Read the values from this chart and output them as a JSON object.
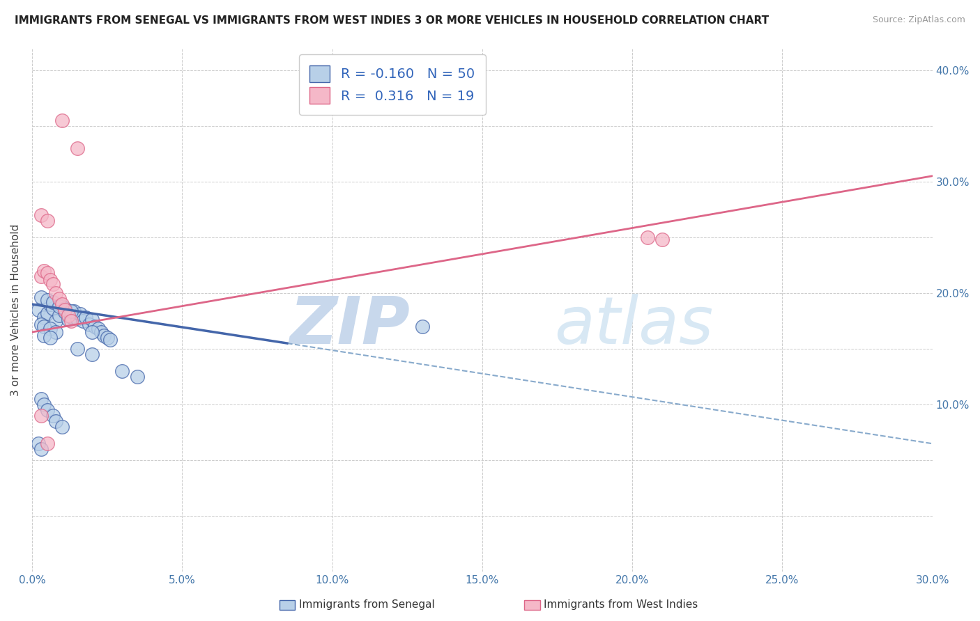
{
  "title": "IMMIGRANTS FROM SENEGAL VS IMMIGRANTS FROM WEST INDIES 3 OR MORE VEHICLES IN HOUSEHOLD CORRELATION CHART",
  "source": "Source: ZipAtlas.com",
  "ylabel": "3 or more Vehicles in Household",
  "legend_blue_R": "-0.160",
  "legend_blue_N": "50",
  "legend_pink_R": "0.316",
  "legend_pink_N": "19",
  "xlim": [
    0.0,
    0.3
  ],
  "ylim": [
    -0.05,
    0.42
  ],
  "xticks": [
    0.0,
    0.05,
    0.1,
    0.15,
    0.2,
    0.25,
    0.3
  ],
  "yticks": [
    0.0,
    0.05,
    0.1,
    0.15,
    0.2,
    0.25,
    0.3,
    0.35,
    0.4
  ],
  "ytick_labels_right": [
    "",
    "",
    "10.0%",
    "",
    "20.0%",
    "",
    "30.0%",
    "",
    "40.0%"
  ],
  "xtick_labels": [
    "0.0%",
    "5.0%",
    "10.0%",
    "15.0%",
    "20.0%",
    "25.0%",
    "30.0%"
  ],
  "color_blue": "#b8d0e8",
  "color_pink": "#f5b8c8",
  "color_blue_line": "#4466aa",
  "color_pink_line": "#dd6688",
  "color_dashed": "#88aacc",
  "background": "#ffffff",
  "watermark_zip": "ZIP",
  "watermark_atlas": "atlas",
  "blue_scatter_x": [
    0.002,
    0.004,
    0.005,
    0.006,
    0.007,
    0.008,
    0.009,
    0.01,
    0.011,
    0.012,
    0.013,
    0.014,
    0.015,
    0.016,
    0.017,
    0.018,
    0.019,
    0.02,
    0.021,
    0.022,
    0.023,
    0.024,
    0.025,
    0.026,
    0.003,
    0.005,
    0.007,
    0.009,
    0.011,
    0.013,
    0.003,
    0.004,
    0.006,
    0.008,
    0.004,
    0.006,
    0.015,
    0.02,
    0.03,
    0.035,
    0.003,
    0.004,
    0.005,
    0.007,
    0.008,
    0.01,
    0.002,
    0.003,
    0.13,
    0.02
  ],
  "blue_scatter_y": [
    0.185,
    0.178,
    0.182,
    0.19,
    0.186,
    0.175,
    0.18,
    0.188,
    0.183,
    0.176,
    0.179,
    0.184,
    0.177,
    0.181,
    0.175,
    0.178,
    0.172,
    0.176,
    0.17,
    0.168,
    0.165,
    0.162,
    0.16,
    0.158,
    0.196,
    0.194,
    0.192,
    0.188,
    0.186,
    0.184,
    0.172,
    0.17,
    0.168,
    0.165,
    0.162,
    0.16,
    0.15,
    0.145,
    0.13,
    0.125,
    0.105,
    0.1,
    0.095,
    0.09,
    0.085,
    0.08,
    0.065,
    0.06,
    0.17,
    0.165
  ],
  "pink_scatter_x": [
    0.003,
    0.004,
    0.005,
    0.006,
    0.007,
    0.008,
    0.009,
    0.01,
    0.011,
    0.012,
    0.013,
    0.003,
    0.005,
    0.01,
    0.015,
    0.003,
    0.005,
    0.205,
    0.21
  ],
  "pink_scatter_y": [
    0.215,
    0.22,
    0.218,
    0.212,
    0.208,
    0.2,
    0.195,
    0.19,
    0.185,
    0.18,
    0.175,
    0.27,
    0.265,
    0.355,
    0.33,
    0.09,
    0.065,
    0.25,
    0.248
  ],
  "blue_line_x": [
    0.0,
    0.085
  ],
  "blue_line_y": [
    0.19,
    0.155
  ],
  "dashed_line_x": [
    0.085,
    0.3
  ],
  "dashed_line_y": [
    0.155,
    0.065
  ],
  "pink_line_x": [
    0.0,
    0.3
  ],
  "pink_line_y": [
    0.165,
    0.305
  ],
  "legend_labels": [
    "Immigrants from Senegal",
    "Immigrants from West Indies"
  ],
  "figsize": [
    14.06,
    8.92
  ],
  "dpi": 100
}
